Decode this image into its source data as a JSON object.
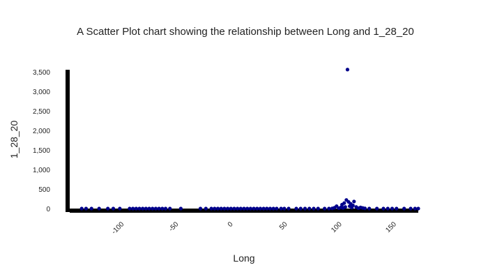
{
  "chart_data": {
    "type": "scatter",
    "title": "A Scatter Plot chart showing the relationship between Long and 1_28_20",
    "xlabel": "Long",
    "ylabel": "1_28_20",
    "xlim": [
      -150,
      170
    ],
    "ylim": [
      0,
      3550
    ],
    "x_ticks": [
      -100,
      -50,
      0,
      50,
      100,
      150
    ],
    "x_tick_labels": [
      "-100",
      "-50",
      "0",
      "50",
      "100",
      "150"
    ],
    "y_ticks": [
      0,
      500,
      1000,
      1500,
      2000,
      2500,
      3000,
      3500
    ],
    "y_tick_labels": [
      "0",
      "500",
      "1,000",
      "1,500",
      "2,000",
      "2,500",
      "3,000",
      "3,500"
    ],
    "grid": false,
    "legend": "none",
    "point_color": "#00008b",
    "points": [
      {
        "x": -139,
        "y": 0
      },
      {
        "x": -135,
        "y": 0
      },
      {
        "x": -130,
        "y": 0
      },
      {
        "x": -123,
        "y": 0
      },
      {
        "x": -115,
        "y": 0
      },
      {
        "x": -110,
        "y": 0
      },
      {
        "x": -104,
        "y": 0
      },
      {
        "x": -95,
        "y": 0
      },
      {
        "x": -92,
        "y": 0
      },
      {
        "x": -89,
        "y": 0
      },
      {
        "x": -86,
        "y": 0
      },
      {
        "x": -83,
        "y": 0
      },
      {
        "x": -80,
        "y": 0
      },
      {
        "x": -77,
        "y": 0
      },
      {
        "x": -74,
        "y": 0
      },
      {
        "x": -71,
        "y": 0
      },
      {
        "x": -68,
        "y": 0
      },
      {
        "x": -65,
        "y": 0
      },
      {
        "x": -62,
        "y": 0
      },
      {
        "x": -58,
        "y": 0
      },
      {
        "x": -48,
        "y": 0
      },
      {
        "x": -30,
        "y": 0
      },
      {
        "x": -25,
        "y": 0
      },
      {
        "x": -20,
        "y": 0
      },
      {
        "x": -17,
        "y": 0
      },
      {
        "x": -14,
        "y": 0
      },
      {
        "x": -11,
        "y": 0
      },
      {
        "x": -8,
        "y": 0
      },
      {
        "x": -5,
        "y": 0
      },
      {
        "x": -2,
        "y": 0
      },
      {
        "x": 1,
        "y": 0
      },
      {
        "x": 4,
        "y": 0
      },
      {
        "x": 7,
        "y": 0
      },
      {
        "x": 10,
        "y": 0
      },
      {
        "x": 13,
        "y": 0
      },
      {
        "x": 16,
        "y": 0
      },
      {
        "x": 19,
        "y": 0
      },
      {
        "x": 22,
        "y": 0
      },
      {
        "x": 25,
        "y": 0
      },
      {
        "x": 28,
        "y": 0
      },
      {
        "x": 31,
        "y": 0
      },
      {
        "x": 34,
        "y": 0
      },
      {
        "x": 37,
        "y": 0
      },
      {
        "x": 40,
        "y": 0
      },
      {
        "x": 44,
        "y": 0
      },
      {
        "x": 47,
        "y": 0
      },
      {
        "x": 51,
        "y": 0
      },
      {
        "x": 58,
        "y": 0
      },
      {
        "x": 62,
        "y": 0
      },
      {
        "x": 66,
        "y": 0
      },
      {
        "x": 70,
        "y": 0
      },
      {
        "x": 74,
        "y": 0
      },
      {
        "x": 78,
        "y": 0
      },
      {
        "x": 84,
        "y": 0
      },
      {
        "x": 88,
        "y": 0
      },
      {
        "x": 91,
        "y": 5
      },
      {
        "x": 93,
        "y": 20
      },
      {
        "x": 95,
        "y": 60
      },
      {
        "x": 97,
        "y": 10
      },
      {
        "x": 99,
        "y": 30
      },
      {
        "x": 100,
        "y": 100
      },
      {
        "x": 101,
        "y": 15
      },
      {
        "x": 102,
        "y": 140
      },
      {
        "x": 103,
        "y": 40
      },
      {
        "x": 104,
        "y": 220
      },
      {
        "x": 105,
        "y": 3554
      },
      {
        "x": 106,
        "y": 170
      },
      {
        "x": 107,
        "y": 60
      },
      {
        "x": 108,
        "y": 120
      },
      {
        "x": 109,
        "y": 25
      },
      {
        "x": 110,
        "y": 80
      },
      {
        "x": 111,
        "y": 180
      },
      {
        "x": 113,
        "y": 40
      },
      {
        "x": 115,
        "y": 10
      },
      {
        "x": 117,
        "y": 30
      },
      {
        "x": 119,
        "y": 15
      },
      {
        "x": 121,
        "y": 5
      },
      {
        "x": 125,
        "y": 0
      },
      {
        "x": 132,
        "y": 0
      },
      {
        "x": 138,
        "y": 0
      },
      {
        "x": 142,
        "y": 0
      },
      {
        "x": 146,
        "y": 0
      },
      {
        "x": 150,
        "y": 0
      },
      {
        "x": 157,
        "y": 0
      },
      {
        "x": 163,
        "y": 0
      },
      {
        "x": 167,
        "y": 0
      },
      {
        "x": 170,
        "y": 0
      }
    ]
  }
}
